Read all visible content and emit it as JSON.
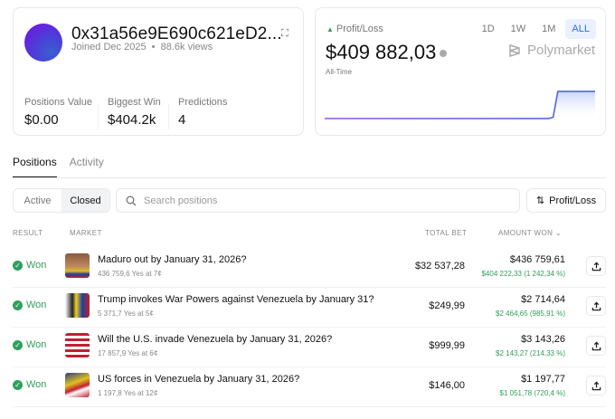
{
  "profile": {
    "address": "0x31a56e9E690c621eD2...",
    "joined": "Joined Dec 2025",
    "views": "88.6k views",
    "stats": [
      {
        "label": "Positions Value",
        "value": "$0.00"
      },
      {
        "label": "Biggest Win",
        "value": "$404.2k"
      },
      {
        "label": "Predictions",
        "value": "4"
      }
    ]
  },
  "pnl": {
    "label": "Profit/Loss",
    "value": "$409 882,03",
    "brand": "Polymarket",
    "period": "All-Time",
    "ranges": [
      "1D",
      "1W",
      "1M",
      "ALL"
    ],
    "selected_range": "ALL",
    "series": [
      0,
      0,
      0,
      0,
      0,
      0,
      0,
      0,
      0,
      0,
      0,
      0,
      0,
      0,
      0,
      0,
      0,
      0,
      0,
      0,
      0,
      0,
      0,
      0,
      0,
      0,
      0,
      0,
      0,
      0,
      0,
      0,
      0,
      0,
      0,
      0,
      0,
      0,
      0,
      0,
      0,
      0,
      0,
      0,
      0,
      0,
      0,
      0,
      0,
      0.05,
      1,
      1,
      1,
      1,
      1,
      1,
      1,
      1,
      1
    ]
  },
  "tabs": [
    "Positions",
    "Activity"
  ],
  "filters": {
    "active": "Active",
    "closed": "Closed",
    "search_placeholder": "Search positions",
    "sort": "Profit/Loss"
  },
  "table": {
    "headers": {
      "result": "RESULT",
      "market": "MARKET",
      "total_bet": "TOTAL BET",
      "amount_won": "AMOUNT WON"
    },
    "rows": [
      {
        "result": "Won",
        "title": "Maduro out by January 31, 2026?",
        "sub": "436 759,6 Yes at 7¢",
        "bet": "$32 537,28",
        "won": "$436 759,61",
        "gain": "$404 222,33 (1 242,34 %)"
      },
      {
        "result": "Won",
        "title": "Trump invokes War Powers against Venezuela by January 31?",
        "sub": "5 371,7 Yes at 5¢",
        "bet": "$249,99",
        "won": "$2 714,64",
        "gain": "$2 464,65 (985,91 %)"
      },
      {
        "result": "Won",
        "title": "Will the U.S. invade Venezuela by January 31, 2026?",
        "sub": "17 857,9 Yes at 6¢",
        "bet": "$999,99",
        "won": "$3 143,26",
        "gain": "$2 143,27 (214,33 %)"
      },
      {
        "result": "Won",
        "title": "US forces in Venezuela by January 31, 2026?",
        "sub": "1 197,8 Yes at 12¢",
        "bet": "$146,00",
        "won": "$1 197,77",
        "gain": "$1 051,78 (720,4 %)"
      }
    ]
  },
  "colors": {
    "accent": "#2f6de0",
    "positive": "#2ea05a",
    "line": "#7a4fe0"
  }
}
